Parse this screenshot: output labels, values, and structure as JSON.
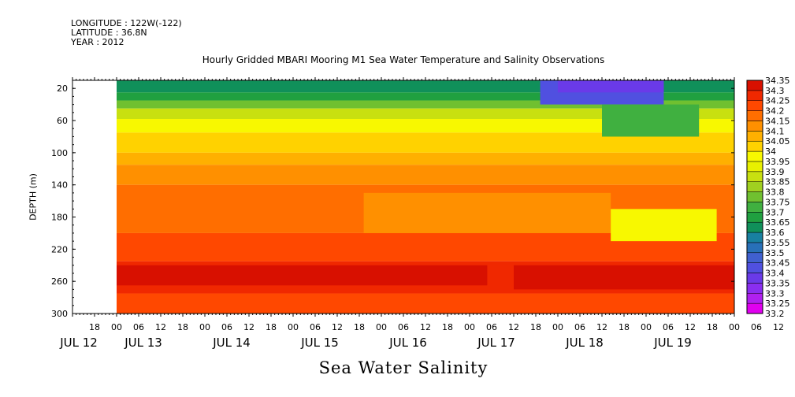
{
  "header": {
    "longitude": "LONGITUDE : 122W(-122)",
    "latitude": "LATITUDE : 36.8N",
    "year": "YEAR : 2012"
  },
  "title": "Hourly Gridded MBARI Mooring M1 Sea Water Temperature and Salinity Observations",
  "bottom_label": "Sea Water Salinity",
  "chart_data": {
    "type": "heatmap",
    "title": "Hourly Gridded MBARI Mooring M1 Sea Water Temperature and Salinity Observations",
    "xlabel": "",
    "ylabel": "DEPTH (m)",
    "variable": "Sea Water Salinity",
    "y_axis": {
      "range": [
        300,
        10
      ],
      "inverted": true,
      "ticks": [
        20,
        60,
        100,
        140,
        180,
        220,
        260,
        300
      ]
    },
    "x_axis": {
      "range_hours": [
        "JUL 12 12:00",
        "JUL 19 24:00"
      ],
      "hour_ticks": [
        "18",
        "00",
        "06",
        "12",
        "18",
        "00",
        "06",
        "12",
        "18",
        "00",
        "06",
        "12",
        "18",
        "00",
        "06",
        "12",
        "18",
        "00",
        "06",
        "12",
        "18",
        "00",
        "06",
        "12",
        "18",
        "00",
        "06",
        "12",
        "18",
        "00",
        "06",
        "12"
      ],
      "day_labels": [
        "JUL 12",
        "JUL 13",
        "JUL 14",
        "JUL 15",
        "JUL 16",
        "JUL 17",
        "JUL 18",
        "JUL 19"
      ],
      "data_start": "JUL 13 00"
    },
    "colorbar": {
      "levels": [
        33.2,
        33.25,
        33.3,
        33.35,
        33.4,
        33.45,
        33.5,
        33.55,
        33.6,
        33.65,
        33.7,
        33.75,
        33.8,
        33.85,
        33.9,
        33.95,
        34,
        34.05,
        34.1,
        34.15,
        34.2,
        34.25,
        34.3,
        34.35
      ],
      "labels": [
        "33.2",
        "33.25",
        "33.3",
        "33.35",
        "33.4",
        "33.45",
        "33.5",
        "33.55",
        "33.6",
        "33.65",
        "33.7",
        "33.75",
        "33.8",
        "33.85",
        "33.9",
        "33.95",
        "34",
        "34.05",
        "34.1",
        "34.15",
        "34.2",
        "34.25",
        "34.3",
        "34.35"
      ],
      "colors": [
        "#e000f0",
        "#b020f0",
        "#8a2ef0",
        "#6a3ae8",
        "#5050e0",
        "#4060d0",
        "#2870b8",
        "#1880a0",
        "#10905a",
        "#20a040",
        "#40b040",
        "#70c030",
        "#a0d020",
        "#c8e010",
        "#e8f000",
        "#f8f800",
        "#ffd200",
        "#ffb000",
        "#ff9000",
        "#ff6e00",
        "#ff4800",
        "#f02800",
        "#d81000",
        "#b00000"
      ]
    },
    "depth_layers": [
      {
        "top": 10,
        "bottom": 25,
        "value": 33.6
      },
      {
        "top": 25,
        "bottom": 35,
        "value": 33.65
      },
      {
        "top": 35,
        "bottom": 45,
        "value": 33.75
      },
      {
        "top": 45,
        "bottom": 58,
        "value": 33.85
      },
      {
        "top": 58,
        "bottom": 75,
        "value": 33.95
      },
      {
        "top": 75,
        "bottom": 100,
        "value": 34.0
      },
      {
        "top": 100,
        "bottom": 115,
        "value": 34.05
      },
      {
        "top": 115,
        "bottom": 140,
        "value": 34.1
      },
      {
        "top": 140,
        "bottom": 200,
        "value": 34.15
      },
      {
        "top": 200,
        "bottom": 235,
        "value": 34.2
      },
      {
        "top": 235,
        "bottom": 275,
        "value": 34.25
      },
      {
        "top": 275,
        "bottom": 300,
        "value": 34.2
      }
    ],
    "features": [
      {
        "day_start": 4.8,
        "day_end": 6.2,
        "top": 10,
        "bottom": 40,
        "value": 33.4
      },
      {
        "day_start": 5.0,
        "day_end": 6.2,
        "top": 10,
        "bottom": 25,
        "value": 33.35
      },
      {
        "day_start": 5.5,
        "day_end": 6.6,
        "top": 40,
        "bottom": 80,
        "value": 33.7
      },
      {
        "day_start": 0.0,
        "day_end": 4.2,
        "top": 240,
        "bottom": 265,
        "value": 34.3
      },
      {
        "day_start": 4.5,
        "day_end": 7.0,
        "top": 240,
        "bottom": 270,
        "value": 34.3
      },
      {
        "day_start": 2.8,
        "day_end": 5.6,
        "top": 150,
        "bottom": 200,
        "value": 34.1
      },
      {
        "day_start": 5.6,
        "day_end": 6.8,
        "top": 170,
        "bottom": 210,
        "value": 33.95
      }
    ]
  }
}
